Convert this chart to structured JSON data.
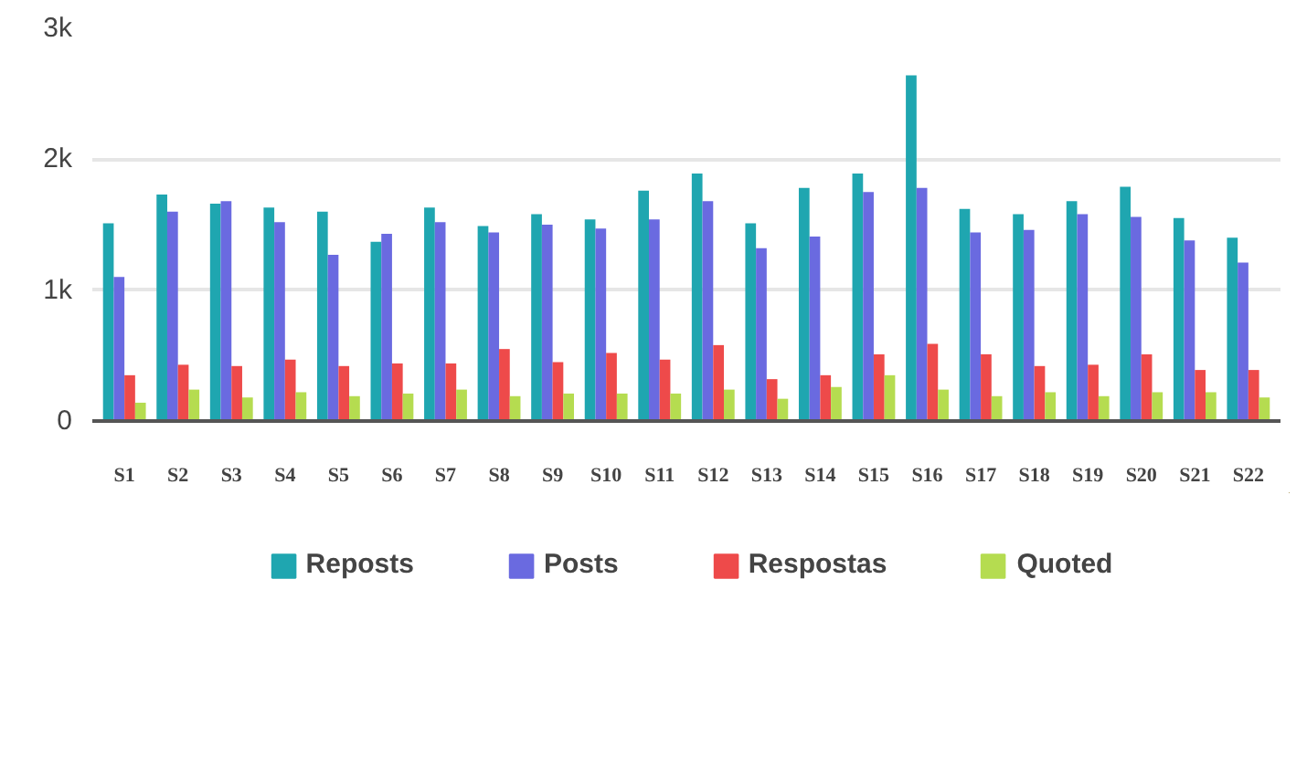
{
  "chart_data": {
    "type": "bar",
    "categories": [
      "S1",
      "S2",
      "S3",
      "S4",
      "S5",
      "S6",
      "S7",
      "S8",
      "S9",
      "S10",
      "S11",
      "S12",
      "S13",
      "S14",
      "S15",
      "S16",
      "S17",
      "S18",
      "S19",
      "S20",
      "S21",
      "S22"
    ],
    "series": [
      {
        "name": "Reposts",
        "color": "#1fa6b0",
        "values": [
          1510,
          1730,
          1660,
          1630,
          1600,
          1370,
          1630,
          1490,
          1580,
          1540,
          1760,
          1890,
          1510,
          1780,
          1890,
          2640,
          1620,
          1580,
          1680,
          1790,
          1550,
          1400
        ]
      },
      {
        "name": "Posts",
        "color": "#6a6ae0",
        "values": [
          1100,
          1600,
          1680,
          1520,
          1270,
          1430,
          1520,
          1440,
          1500,
          1470,
          1540,
          1680,
          1320,
          1410,
          1750,
          1780,
          1440,
          1460,
          1580,
          1560,
          1380,
          1210
        ]
      },
      {
        "name": "Respostas",
        "color": "#ee4a4a",
        "values": [
          350,
          430,
          420,
          470,
          420,
          440,
          440,
          550,
          450,
          520,
          470,
          580,
          320,
          350,
          510,
          590,
          510,
          420,
          430,
          510,
          390,
          390
        ]
      },
      {
        "name": "Quoted",
        "color": "#b5dc50",
        "values": [
          140,
          240,
          180,
          220,
          190,
          210,
          240,
          190,
          210,
          210,
          210,
          240,
          170,
          260,
          350,
          240,
          190,
          220,
          190,
          220,
          220,
          180
        ]
      }
    ],
    "ylim": [
      0,
      3000
    ],
    "yticks": [
      0,
      {
        "value": 1000,
        "label": "1k"
      },
      {
        "value": 2000,
        "label": "2k"
      },
      {
        "value": 3000,
        "label": "3k"
      }
    ],
    "grid": "y",
    "legend": "bottom"
  }
}
